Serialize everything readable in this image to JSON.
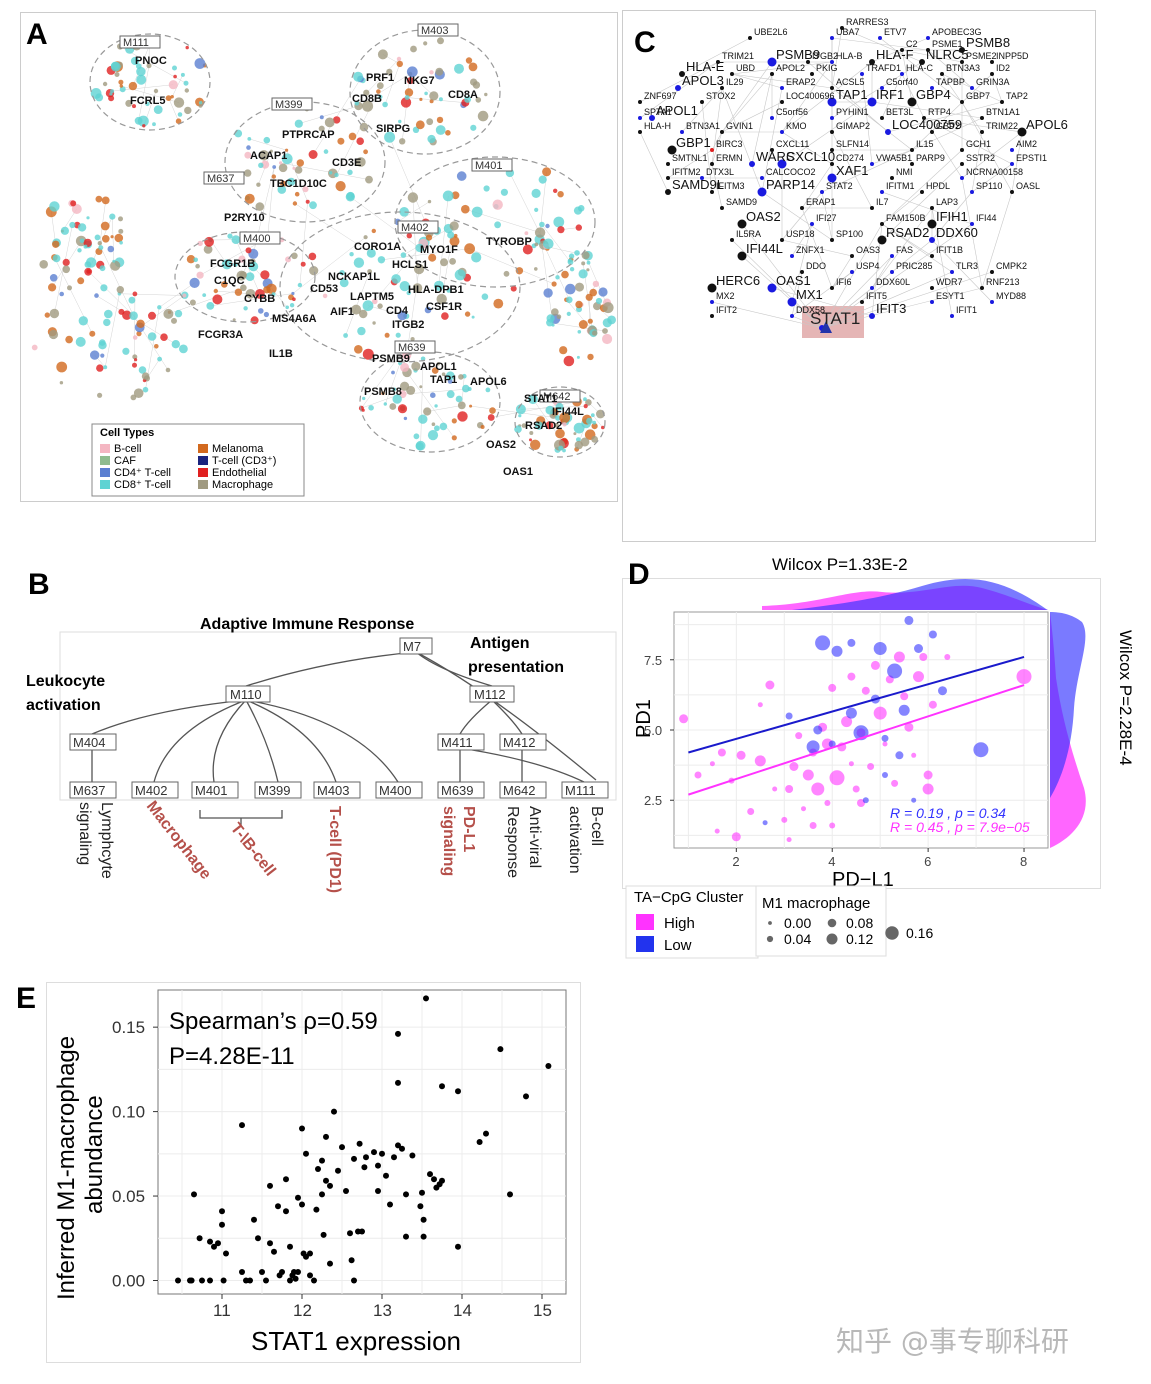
{
  "panels": {
    "a": "A",
    "b": "B",
    "c": "C",
    "d": "D",
    "e": "E"
  },
  "panel_a": {
    "modules": [
      "M111",
      "M403",
      "M399",
      "M637",
      "M401",
      "M402",
      "M400",
      "M639",
      "M642"
    ],
    "genes": [
      "PNOC",
      "FCRL5",
      "PRF1",
      "NKG7",
      "CD8A",
      "CD8B",
      "SIRPG",
      "PTPRCAP",
      "ACAP1",
      "CD3E",
      "TBC1D10C",
      "P2RY10",
      "CORO1A",
      "MYO1F",
      "TYROBP",
      "HCLS1",
      "FCGR1B",
      "C1QC",
      "NCKAP1L",
      "CD53",
      "HLA-DPB1",
      "CYBB",
      "LAPTM5",
      "CSF1R",
      "MS4A6A",
      "AIF1",
      "CD4",
      "ITGB2",
      "FCGR3A",
      "IL1B",
      "PSMB9",
      "APOL1",
      "TAP1",
      "APOL6",
      "PSMB8",
      "STAT1",
      "IFI44L",
      "RSAD2",
      "OAS2",
      "OAS1"
    ],
    "legend_title": "Cell Types",
    "legend": [
      {
        "label": "B-cell",
        "color": "#f4b6c2"
      },
      {
        "label": "Melanoma",
        "color": "#d2691e"
      },
      {
        "label": "CAF",
        "color": "#8fbc8f"
      },
      {
        "label": "T-cell (CD3⁺)",
        "color": "#1a237e"
      },
      {
        "label": "CD4⁺ T-cell",
        "color": "#5b7fd1"
      },
      {
        "label": "Endothelial",
        "color": "#e02020"
      },
      {
        "label": "CD8⁺ T-cell",
        "color": "#5fd3d3"
      },
      {
        "label": "Macrophage",
        "color": "#a09a80"
      }
    ]
  },
  "panel_b": {
    "root": "M7",
    "root_title": "Adaptive Immune Response",
    "antigen": [
      "Antigen",
      "presentation"
    ],
    "leukocyte": [
      "Leukocyte",
      "activation"
    ],
    "level2": [
      "M110",
      "M112"
    ],
    "level3": [
      "M404",
      "M411",
      "M412"
    ],
    "leaves": [
      "M637",
      "M402",
      "M401",
      "M399",
      "M403",
      "M400",
      "M639",
      "M642",
      "M111"
    ],
    "leaf_labels": [
      {
        "text": "Lymphcyte signaling",
        "line1": "Lymphcyte",
        "line2": "signaling",
        "color": "#222"
      },
      {
        "text": "Macrophage",
        "color": "#b5504a"
      },
      {
        "text": "T-\\B-cell",
        "color": "#b5504a"
      },
      {
        "text": "T-cell (PD1)",
        "color": "#b5504a"
      },
      {
        "text": "PD-L1 signaling",
        "line1": "PD-L1",
        "line2": "signaling",
        "color": "#b5504a"
      },
      {
        "text": "Anti-viral Response",
        "line1": "Anti-viral",
        "line2": "Response",
        "color": "#222"
      },
      {
        "text": "B-cell activation",
        "line1": "B-cell",
        "line2": "activation",
        "color": "#222"
      }
    ]
  },
  "panel_c": {
    "hub": "STAT1",
    "genes": [
      "RARRES3",
      "UBE2L6",
      "UBA7",
      "ETV7",
      "APOBEC3G",
      "C2",
      "PSME1",
      "PSMB8",
      "TRIM21",
      "PSMB9",
      "ITGB2",
      "HLA-B",
      "HLA-F",
      "NLRC5",
      "PSME2",
      "INPP5D",
      "HLA-E",
      "UBD",
      "APOL2",
      "PKIG",
      "TRAFD1",
      "HLA-C",
      "BTN3A3",
      "ID2",
      "APOL3",
      "IL29",
      "ERAP2",
      "ACSL5",
      "C5orf40",
      "TAPBP",
      "GRIN3A",
      "ZNF697",
      "STOX2",
      "LOC400696",
      "TAP1",
      "IRF1",
      "GBP4",
      "GBP7",
      "TAP2",
      "SPTA1",
      "APOL1",
      "C5orf56",
      "PYHIN1",
      "BET3L",
      "RTP4",
      "BTN1A1",
      "HLA-H",
      "BTN3A1",
      "GVIN1",
      "KMO",
      "GIMAP2",
      "LOC400759",
      "GBP2",
      "TRIM22",
      "APOL6",
      "GBP1",
      "BIRC3",
      "CXCL11",
      "SLFN14",
      "IL15",
      "GCH1",
      "AIM2",
      "SMTNL1",
      "ERMN",
      "WARS",
      "CXCL10",
      "CD274",
      "VWA5B1",
      "PARP9",
      "SSTR2",
      "EPSTI1",
      "IFITM2",
      "DTX3L",
      "CALCOCO2",
      "XAF1",
      "NMI",
      "NCRNA00158",
      "SAMD9L",
      "IFITM3",
      "PARP14",
      "STAT2",
      "IFITM1",
      "HPDL",
      "SP110",
      "OASL",
      "SAMD9",
      "ERAP1",
      "IL7",
      "LAP3",
      "OAS2",
      "IFI27",
      "FAM150B",
      "IFIH1",
      "IFI44",
      "IL5RA",
      "USP18",
      "SP100",
      "RSAD2",
      "DDX60",
      "IFI44L",
      "ZNFX1",
      "OAS3",
      "FAS",
      "IFIT1B",
      "DDO",
      "USP4",
      "PRIC285",
      "TLR3",
      "CMPK2",
      "HERC6",
      "OAS1",
      "IFI6",
      "DDX60L",
      "WDR7",
      "RNF213",
      "MX2",
      "MX1",
      "IFIT5",
      "ESYT1",
      "MYD88",
      "IFIT2",
      "DDX58",
      "IFIT3",
      "IFIT1"
    ]
  },
  "panel_d": {
    "chart_data": {
      "type": "scatter",
      "title_top": "Wilcox P=1.33E-2",
      "title_right": "Wilcox P=2.28E-4",
      "xlabel": "PD−L1",
      "ylabel": "PD1",
      "xlim": [
        0.7,
        8.5
      ],
      "ylim": [
        0.8,
        9.2
      ],
      "xticks": [
        "2",
        "4",
        "6",
        "8"
      ],
      "yticks": [
        "2.5",
        "5.0",
        "7.5"
      ],
      "series": [
        {
          "name": "High",
          "color": "#ff33ff",
          "fit": {
            "x": [
              1.0,
              8.0
            ],
            "y": [
              2.7,
              6.6
            ]
          },
          "stat": "R = 0.45 , p = 7.9e−05",
          "points": [
            [
              0.9,
              5.4,
              0.06
            ],
            [
              1.2,
              3.4,
              0.04
            ],
            [
              1.5,
              3.8,
              0.02
            ],
            [
              1.7,
              4.2,
              0.05
            ],
            [
              1.9,
              3.2,
              0.03
            ],
            [
              2.1,
              4.1,
              0.06
            ],
            [
              2.0,
              1.2,
              0.06
            ],
            [
              1.6,
              1.4,
              0.02
            ],
            [
              2.3,
              2.1,
              0.04
            ],
            [
              2.5,
              3.9,
              0.08
            ],
            [
              2.7,
              6.6,
              0.06
            ],
            [
              2.8,
              2.9,
              0.02
            ],
            [
              3.0,
              1.8,
              0.03
            ],
            [
              3.1,
              2.9,
              0.05
            ],
            [
              3.2,
              3.7,
              0.06
            ],
            [
              3.3,
              4.8,
              0.04
            ],
            [
              3.4,
              2.2,
              0.02
            ],
            [
              3.5,
              3.4,
              0.08
            ],
            [
              3.6,
              4.2,
              0.05
            ],
            [
              3.6,
              1.6,
              0.04
            ],
            [
              3.7,
              2.9,
              0.1
            ],
            [
              3.8,
              5.1,
              0.06
            ],
            [
              3.9,
              4.5,
              0.08
            ],
            [
              3.9,
              2.4,
              0.03
            ],
            [
              4.0,
              6.5,
              0.05
            ],
            [
              4.1,
              3.3,
              0.12
            ],
            [
              4.2,
              4.4,
              0.06
            ],
            [
              4.3,
              5.3,
              0.08
            ],
            [
              4.4,
              6.9,
              0.05
            ],
            [
              4.4,
              3.8,
              0.02
            ],
            [
              4.5,
              2.9,
              0.04
            ],
            [
              4.6,
              4.9,
              0.06
            ],
            [
              4.7,
              6.4,
              0.05
            ],
            [
              4.8,
              3.7,
              0.04
            ],
            [
              4.9,
              7.3,
              0.06
            ],
            [
              5.0,
              5.6,
              0.1
            ],
            [
              5.1,
              4.5,
              0.02
            ],
            [
              5.2,
              6.8,
              0.05
            ],
            [
              5.3,
              3.1,
              0.04
            ],
            [
              5.4,
              7.6,
              0.08
            ],
            [
              5.5,
              6.2,
              0.05
            ],
            [
              5.6,
              5.1,
              0.06
            ],
            [
              5.7,
              4.1,
              0.02
            ],
            [
              5.8,
              6.9,
              0.08
            ],
            [
              5.9,
              7.6,
              0.05
            ],
            [
              6.0,
              2.9,
              0.08
            ],
            [
              6.0,
              3.4,
              0.06
            ],
            [
              6.1,
              5.9,
              0.05
            ],
            [
              6.4,
              7.6,
              0.03
            ],
            [
              8.0,
              6.9,
              0.12
            ],
            [
              3.1,
              1.1,
              0.02
            ],
            [
              4.0,
              1.6,
              0.03
            ],
            [
              2.5,
              5.9,
              0.02
            ],
            [
              4.6,
              2.4,
              0.05
            ]
          ]
        },
        {
          "name": "Low",
          "color": "#3333ff",
          "fit": {
            "x": [
              1.0,
              8.0
            ],
            "y": [
              4.2,
              7.6
            ]
          },
          "stat": "R = 0.19 , p = 0.34",
          "points": [
            [
              2.6,
              1.7,
              0.02
            ],
            [
              3.1,
              5.5,
              0.04
            ],
            [
              3.6,
              4.4,
              0.1
            ],
            [
              3.7,
              5.0,
              0.06
            ],
            [
              3.8,
              8.1,
              0.12
            ],
            [
              4.1,
              7.8,
              0.08
            ],
            [
              4.4,
              8.1,
              0.05
            ],
            [
              4.4,
              5.6,
              0.08
            ],
            [
              4.6,
              4.9,
              0.12
            ],
            [
              4.7,
              2.5,
              0.03
            ],
            [
              4.9,
              6.1,
              0.06
            ],
            [
              5.0,
              7.9,
              0.1
            ],
            [
              5.1,
              4.7,
              0.04
            ],
            [
              5.3,
              7.1,
              0.12
            ],
            [
              5.4,
              4.1,
              0.05
            ],
            [
              5.5,
              5.7,
              0.08
            ],
            [
              5.6,
              8.9,
              0.06
            ],
            [
              5.7,
              2.5,
              0.02
            ],
            [
              5.8,
              7.9,
              0.06
            ],
            [
              6.1,
              8.4,
              0.05
            ],
            [
              6.3,
              6.4,
              0.06
            ],
            [
              7.1,
              4.3,
              0.12
            ],
            [
              5.1,
              3.4,
              0.03
            ],
            [
              4.0,
              4.5,
              0.04
            ]
          ]
        }
      ],
      "legend_cluster_title": "TA−CpG Cluster",
      "legend_cluster": [
        {
          "label": "High",
          "color": "#ff33ff"
        },
        {
          "label": "Low",
          "color": "#3333ff"
        }
      ],
      "legend_size_title": "M1 macrophage",
      "legend_size": [
        {
          "label": "0.00",
          "v": 0.0
        },
        {
          "label": "0.04",
          "v": 0.04
        },
        {
          "label": "0.08",
          "v": 0.08
        },
        {
          "label": "0.12",
          "v": 0.12
        },
        {
          "label": "0.16",
          "v": 0.16
        }
      ]
    }
  },
  "panel_e": {
    "chart_data": {
      "type": "scatter",
      "xlabel": "STAT1 expression",
      "ylabel_line1": "Inferred M1-macrophage",
      "ylabel_line2": "abundance",
      "annotation_line1": "Spearman’s ρ=0.59",
      "annotation_line2": "P=4.28E-11",
      "xlim": [
        10.2,
        15.3
      ],
      "ylim": [
        -0.008,
        0.172
      ],
      "xticks": [
        "11",
        "12",
        "13",
        "14",
        "15"
      ],
      "yticks": [
        "0.00",
        "0.05",
        "0.10",
        "0.15"
      ],
      "points": [
        [
          10.45,
          0.0
        ],
        [
          10.6,
          0.0
        ],
        [
          10.62,
          0.0
        ],
        [
          10.75,
          0.0
        ],
        [
          10.85,
          0.0
        ],
        [
          10.65,
          0.051
        ],
        [
          10.72,
          0.025
        ],
        [
          10.85,
          0.023
        ],
        [
          10.9,
          0.02
        ],
        [
          10.95,
          0.022
        ],
        [
          11.0,
          0.041
        ],
        [
          11.0,
          0.033
        ],
        [
          11.05,
          0.016
        ],
        [
          11.02,
          0.0
        ],
        [
          11.25,
          0.092
        ],
        [
          11.25,
          0.005
        ],
        [
          11.3,
          0.0
        ],
        [
          11.35,
          0.0
        ],
        [
          11.4,
          0.036
        ],
        [
          11.45,
          0.025
        ],
        [
          11.5,
          0.005
        ],
        [
          11.55,
          0.0
        ],
        [
          11.6,
          0.056
        ],
        [
          11.6,
          0.022
        ],
        [
          11.65,
          0.017
        ],
        [
          11.7,
          0.044
        ],
        [
          11.72,
          0.003
        ],
        [
          11.75,
          0.005
        ],
        [
          11.8,
          0.06
        ],
        [
          11.8,
          0.041
        ],
        [
          11.85,
          0.02
        ],
        [
          11.85,
          0.0
        ],
        [
          11.88,
          0.003
        ],
        [
          11.9,
          0.005
        ],
        [
          11.92,
          0.001
        ],
        [
          11.95,
          0.005
        ],
        [
          11.95,
          0.049
        ],
        [
          12.0,
          0.09
        ],
        [
          12.0,
          0.045
        ],
        [
          12.02,
          0.016
        ],
        [
          12.05,
          0.014
        ],
        [
          12.05,
          0.075
        ],
        [
          12.1,
          0.016
        ],
        [
          12.1,
          0.003
        ],
        [
          12.15,
          0.0
        ],
        [
          12.18,
          0.042
        ],
        [
          12.2,
          0.066
        ],
        [
          12.25,
          0.071
        ],
        [
          12.25,
          0.051
        ],
        [
          12.27,
          0.027
        ],
        [
          12.3,
          0.085
        ],
        [
          12.3,
          0.059
        ],
        [
          12.35,
          0.056
        ],
        [
          12.35,
          0.01
        ],
        [
          12.4,
          0.1
        ],
        [
          12.45,
          0.065
        ],
        [
          12.5,
          0.079
        ],
        [
          12.55,
          0.053
        ],
        [
          12.6,
          0.028
        ],
        [
          12.62,
          0.012
        ],
        [
          12.65,
          0.072
        ],
        [
          12.65,
          0.0
        ],
        [
          12.7,
          0.029
        ],
        [
          12.72,
          0.081
        ],
        [
          12.75,
          0.029
        ],
        [
          12.78,
          0.067
        ],
        [
          12.8,
          0.073
        ],
        [
          12.9,
          0.076
        ],
        [
          12.95,
          0.068
        ],
        [
          12.95,
          0.053
        ],
        [
          13.0,
          0.075
        ],
        [
          13.05,
          0.062
        ],
        [
          13.1,
          0.045
        ],
        [
          13.15,
          0.073
        ],
        [
          13.2,
          0.08
        ],
        [
          13.2,
          0.146
        ],
        [
          13.2,
          0.117
        ],
        [
          13.25,
          0.078
        ],
        [
          13.3,
          0.051
        ],
        [
          13.3,
          0.026
        ],
        [
          13.38,
          0.074
        ],
        [
          13.48,
          0.044
        ],
        [
          13.5,
          0.052
        ],
        [
          13.52,
          0.036
        ],
        [
          13.52,
          0.026
        ],
        [
          13.55,
          0.167
        ],
        [
          13.6,
          0.063
        ],
        [
          13.65,
          0.06
        ],
        [
          13.68,
          0.055
        ],
        [
          13.72,
          0.057
        ],
        [
          13.75,
          0.059
        ],
        [
          13.75,
          0.115
        ],
        [
          13.95,
          0.112
        ],
        [
          13.95,
          0.02
        ],
        [
          14.22,
          0.082
        ],
        [
          14.3,
          0.087
        ],
        [
          14.48,
          0.137
        ],
        [
          14.6,
          0.051
        ],
        [
          14.8,
          0.109
        ],
        [
          15.08,
          0.127
        ]
      ]
    }
  },
  "watermark": "知乎 @事专聊科研"
}
